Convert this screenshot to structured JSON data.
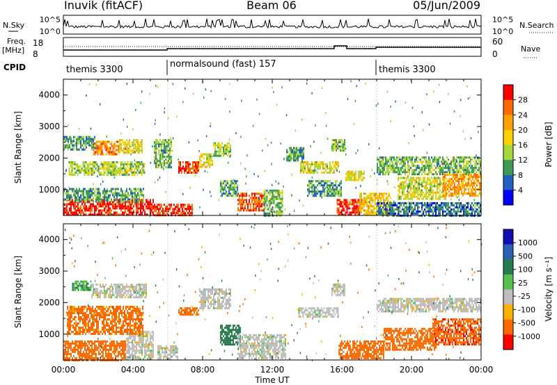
{
  "header": {
    "station": "Inuvik (fitACF)",
    "beam": "Beam 06",
    "date": "05/Jun/2009"
  },
  "top_panels": {
    "nsky_label": "N.Sky",
    "nsky_ticks": [
      "10^5",
      "10^0"
    ],
    "nsearch_label": "N.Search",
    "nsearch_ticks": [
      "10^5",
      "10^0"
    ],
    "freq_label": "Freq.",
    "freq_unit": "[MHz]",
    "freq_ticks": [
      "18",
      "8"
    ],
    "nave_label": "Nave",
    "nave_ticks": [
      "60",
      "0"
    ],
    "cpid_label": "CPID",
    "cpid_segments": [
      {
        "label": "themis 3300",
        "start_h": 0,
        "end_h": 6
      },
      {
        "label": "normalsound (fast) 157",
        "start_h": 6,
        "end_h": 18
      },
      {
        "label": "themis 3300",
        "start_h": 18,
        "end_h": 24
      }
    ]
  },
  "chart_data": [
    {
      "type": "heatmap",
      "name": "power",
      "ylabel": "Slant Range [km]",
      "colorbar_label": "Power [dB]",
      "colorbar_ticks": [
        "28",
        "24",
        "20",
        "16",
        "12",
        "8",
        "4"
      ],
      "colorbar_colors": [
        "#ff0000",
        "#ff6a00",
        "#ffa000",
        "#ffd000",
        "#a6d83c",
        "#3e9b54",
        "#2060c0",
        "#0000ff"
      ],
      "ylim": [
        180,
        4500
      ],
      "y_ticks": [
        "4000",
        "3000",
        "2000",
        "1000"
      ],
      "xlim": [
        0,
        24
      ],
      "regions": [
        {
          "t0": 0.0,
          "t1": 5.2,
          "r0": 200,
          "r1": 700,
          "value": 28
        },
        {
          "t0": 5.2,
          "t1": 7.4,
          "r0": 200,
          "r1": 550,
          "value": 27
        },
        {
          "t0": 0.0,
          "t1": 4.6,
          "r0": 600,
          "r1": 1050,
          "value": 8
        },
        {
          "t0": 0.3,
          "t1": 4.7,
          "r0": 1450,
          "r1": 1900,
          "value": 12
        },
        {
          "t0": 1.7,
          "t1": 3.2,
          "r0": 2150,
          "r1": 2550,
          "value": 22
        },
        {
          "t0": 0.0,
          "t1": 1.8,
          "r0": 2300,
          "r1": 2700,
          "value": 8
        },
        {
          "t0": 3.2,
          "t1": 4.5,
          "r0": 2200,
          "r1": 2600,
          "value": 16
        },
        {
          "t0": 5.2,
          "t1": 6.2,
          "r0": 1700,
          "r1": 2600,
          "value": 10
        },
        {
          "t0": 6.6,
          "t1": 7.8,
          "r0": 1550,
          "r1": 1900,
          "value": 26
        },
        {
          "t0": 7.8,
          "t1": 8.6,
          "r0": 1750,
          "r1": 2150,
          "value": 16
        },
        {
          "t0": 8.6,
          "t1": 9.6,
          "r0": 2100,
          "r1": 2500,
          "value": 12
        },
        {
          "t0": 9.0,
          "t1": 10.0,
          "r0": 800,
          "r1": 1300,
          "value": 8
        },
        {
          "t0": 10.0,
          "t1": 11.6,
          "r0": 350,
          "r1": 900,
          "value": 25
        },
        {
          "t0": 11.5,
          "t1": 12.6,
          "r0": 200,
          "r1": 1000,
          "value": 10
        },
        {
          "t0": 12.8,
          "t1": 13.8,
          "r0": 1900,
          "r1": 2350,
          "value": 8
        },
        {
          "t0": 13.6,
          "t1": 15.8,
          "r0": 1550,
          "r1": 1900,
          "value": 14
        },
        {
          "t0": 14.0,
          "t1": 16.0,
          "r0": 800,
          "r1": 1300,
          "value": 8
        },
        {
          "t0": 15.4,
          "t1": 16.2,
          "r0": 2250,
          "r1": 2600,
          "value": 10
        },
        {
          "t0": 15.7,
          "t1": 17.0,
          "r0": 200,
          "r1": 700,
          "value": 27
        },
        {
          "t0": 16.2,
          "t1": 17.3,
          "r0": 1300,
          "r1": 1600,
          "value": 16
        },
        {
          "t0": 17.0,
          "t1": 18.8,
          "r0": 200,
          "r1": 900,
          "value": 18
        },
        {
          "t0": 18.0,
          "t1": 24.0,
          "r0": 1500,
          "r1": 2050,
          "value": 10
        },
        {
          "t0": 19.2,
          "t1": 22.0,
          "r0": 700,
          "r1": 1400,
          "value": 14
        },
        {
          "t0": 21.8,
          "t1": 24.0,
          "r0": 800,
          "r1": 1500,
          "value": 20
        },
        {
          "t0": 18.0,
          "t1": 24.0,
          "r0": 200,
          "r1": 600,
          "value": 6
        }
      ]
    },
    {
      "type": "heatmap",
      "name": "velocity",
      "ylabel": "Slant Range [km]",
      "colorbar_label": "Velocity [m s⁻¹]",
      "colorbar_ticks": [
        "1000",
        "500",
        "100",
        "25",
        "-25",
        "-100",
        "-500",
        "-1000"
      ],
      "colorbar_colors": [
        "#1010b0",
        "#2c5fb0",
        "#2a7a50",
        "#55c24c",
        "#bdbdbd",
        "#ffb000",
        "#ff6a00",
        "#ff0000"
      ],
      "ylim": [
        180,
        4500
      ],
      "y_ticks": [
        "4000",
        "3000",
        "2000",
        "1000"
      ],
      "xlim": [
        0,
        24
      ],
      "xlabel": "Time UT",
      "x_ticks": [
        "00:00",
        "04:00",
        "08:00",
        "12:00",
        "16:00",
        "20:00",
        "00:00"
      ],
      "regions": [
        {
          "t0": 0.0,
          "t1": 3.6,
          "r0": 200,
          "r1": 800,
          "value": -300
        },
        {
          "t0": 3.6,
          "t1": 5.2,
          "r0": 200,
          "r1": 1100,
          "value": 0
        },
        {
          "t0": 0.2,
          "t1": 4.6,
          "r0": 1000,
          "r1": 1900,
          "value": -150
        },
        {
          "t0": 0.5,
          "t1": 1.6,
          "r0": 2400,
          "r1": 2700,
          "value": 60
        },
        {
          "t0": 1.6,
          "t1": 4.8,
          "r0": 2200,
          "r1": 2600,
          "value": 0
        },
        {
          "t0": 5.4,
          "t1": 6.6,
          "r0": 200,
          "r1": 650,
          "value": 0
        },
        {
          "t0": 6.6,
          "t1": 7.8,
          "r0": 1600,
          "r1": 1850,
          "value": -150
        },
        {
          "t0": 7.8,
          "t1": 9.6,
          "r0": 1850,
          "r1": 2450,
          "value": 0
        },
        {
          "t0": 9.0,
          "t1": 10.2,
          "r0": 700,
          "r1": 1300,
          "value": 150
        },
        {
          "t0": 10.0,
          "t1": 12.8,
          "r0": 250,
          "r1": 1000,
          "value": 0
        },
        {
          "t0": 13.5,
          "t1": 15.8,
          "r0": 1550,
          "r1": 1850,
          "value": 0
        },
        {
          "t0": 15.4,
          "t1": 16.2,
          "r0": 2250,
          "r1": 2600,
          "value": 0
        },
        {
          "t0": 15.8,
          "t1": 18.4,
          "r0": 250,
          "r1": 800,
          "value": -250
        },
        {
          "t0": 18.0,
          "t1": 24.0,
          "r0": 1700,
          "r1": 2150,
          "value": 0
        },
        {
          "t0": 18.4,
          "t1": 21.4,
          "r0": 500,
          "r1": 1200,
          "value": -200
        },
        {
          "t0": 21.2,
          "t1": 24.0,
          "r0": 700,
          "r1": 1500,
          "value": -400
        }
      ]
    }
  ]
}
